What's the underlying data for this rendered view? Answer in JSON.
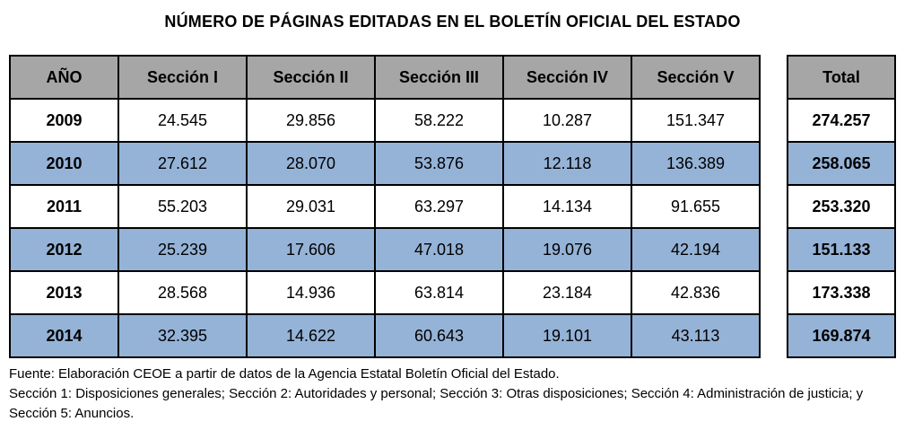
{
  "title": "NÚMERO DE PÁGINAS EDITADAS EN EL BOLETÍN OFICIAL DEL ESTADO",
  "colors": {
    "header_bg": "#a6a6a6",
    "alt_row_bg": "#95b3d7",
    "border": "#000000"
  },
  "chart_data": {
    "type": "table",
    "title": "NÚMERO DE PÁGINAS EDITADAS EN EL BOLETÍN OFICIAL DEL ESTADO",
    "columns": [
      "AÑO",
      "Sección I",
      "Sección II",
      "Sección III",
      "Sección IV",
      "Sección V"
    ],
    "total_column": "Total",
    "rows": [
      {
        "year": "2009",
        "values": [
          "24.545",
          "29.856",
          "58.222",
          "10.287",
          "151.347"
        ],
        "total": "274.257"
      },
      {
        "year": "2010",
        "values": [
          "27.612",
          "28.070",
          "53.876",
          "12.118",
          "136.389"
        ],
        "total": "258.065"
      },
      {
        "year": "2011",
        "values": [
          "55.203",
          "29.031",
          "63.297",
          "14.134",
          "91.655"
        ],
        "total": "253.320"
      },
      {
        "year": "2012",
        "values": [
          "25.239",
          "17.606",
          "47.018",
          "19.076",
          "42.194"
        ],
        "total": "151.133"
      },
      {
        "year": "2013",
        "values": [
          "28.568",
          "14.936",
          "63.814",
          "23.184",
          "42.836"
        ],
        "total": "173.338"
      },
      {
        "year": "2014",
        "values": [
          "32.395",
          "14.622",
          "60.643",
          "19.101",
          "43.113"
        ],
        "total": "169.874"
      }
    ]
  },
  "footnotes": {
    "source": "Fuente: Elaboración CEOE a partir de datos de la Agencia Estatal Boletín Oficial del Estado.",
    "legend": "Sección 1: Disposiciones generales; Sección 2: Autoridades y personal; Sección 3: Otras disposiciones; Sección 4: Administración de justicia; y Sección 5: Anuncios."
  }
}
